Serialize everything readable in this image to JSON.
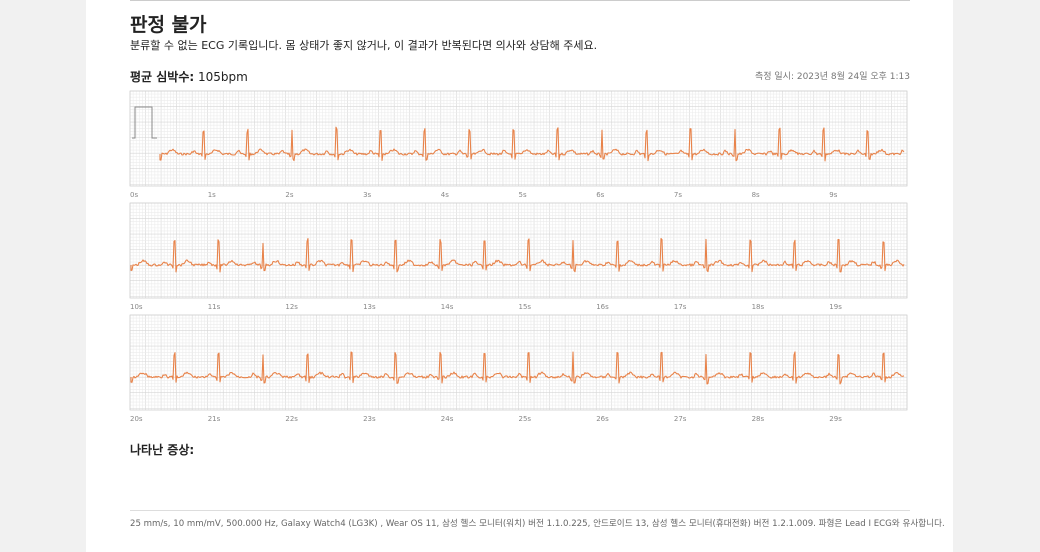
{
  "header": {
    "title": "판정 불가",
    "description": "분류할 수 없는 ECG 기록입니다. 몸 상태가 좋지 않거나, 이 결과가 반복된다면 의사와 상담해 주세요."
  },
  "summary": {
    "heart_rate_label": "평균 심박수:",
    "heart_rate": "105bpm",
    "measured_at": "측정 일시: 2023년 8월 24일 오후 1:13"
  },
  "strips": [
    {
      "time_labels": [
        "0s",
        "1s",
        "2s",
        "3s",
        "4s",
        "5s",
        "6s",
        "7s",
        "8s",
        "9s"
      ]
    },
    {
      "time_labels": [
        "10s",
        "11s",
        "12s",
        "13s",
        "14s",
        "15s",
        "16s",
        "17s",
        "18s",
        "19s"
      ]
    },
    {
      "time_labels": [
        "20s",
        "21s",
        "22s",
        "23s",
        "24s",
        "25s",
        "26s",
        "27s",
        "28s",
        "29s"
      ]
    }
  ],
  "symptoms": {
    "label": "나타난 증상:"
  },
  "footer": "25 mm/s, 10 mm/mV, 500.000 Hz, Galaxy Watch4 (LG3K) , Wear OS 11, 삼성 헬스 모니터(워치) 버전 1.1.0.225, 안드로이드 13, 삼성 헬스 모니터(휴대전화) 버전 1.2.1.009. 파형은 Lead I ECG와 유사합니다."
}
